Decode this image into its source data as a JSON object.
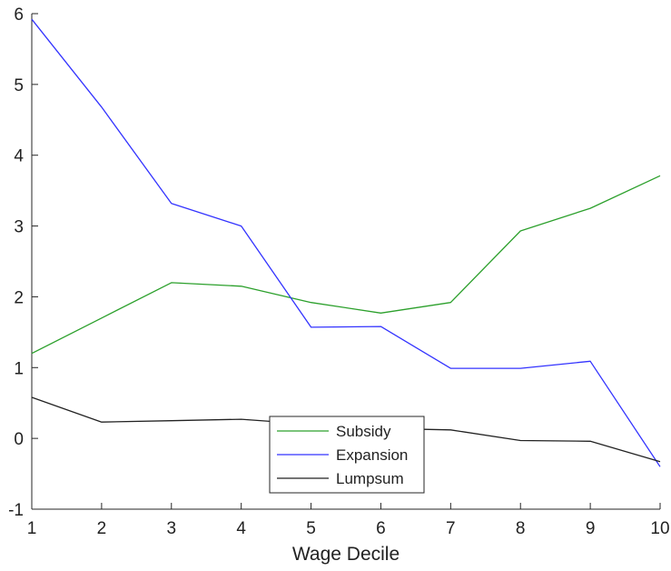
{
  "chart_data": {
    "type": "line",
    "title": "",
    "xlabel": "Wage Decile",
    "ylabel": "",
    "x": [
      1,
      2,
      3,
      4,
      5,
      6,
      7,
      8,
      9,
      10
    ],
    "xlim": [
      1,
      10
    ],
    "ylim": [
      -1,
      6
    ],
    "xticks": [
      1,
      2,
      3,
      4,
      5,
      6,
      7,
      8,
      9,
      10
    ],
    "yticks": [
      -1,
      0,
      1,
      2,
      3,
      4,
      5,
      6
    ],
    "grid": false,
    "legend_position": "bottom-center",
    "series": [
      {
        "name": "Subsidy",
        "color": "#2ca02c",
        "values": [
          1.2,
          1.7,
          2.2,
          2.15,
          1.92,
          1.77,
          1.92,
          2.93,
          3.25,
          3.71
        ]
      },
      {
        "name": "Expansion",
        "color": "#3333ff",
        "values": [
          5.92,
          4.68,
          3.32,
          3.0,
          1.57,
          1.58,
          0.99,
          0.99,
          1.09,
          -0.4
        ]
      },
      {
        "name": "Lumpsum",
        "color": "#222222",
        "values": [
          0.58,
          0.23,
          0.25,
          0.27,
          0.2,
          0.14,
          0.12,
          -0.03,
          -0.04,
          -0.33
        ]
      }
    ]
  }
}
